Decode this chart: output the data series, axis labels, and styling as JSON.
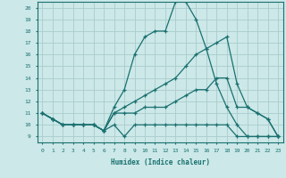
{
  "xlabel": "Humidex (Indice chaleur)",
  "bg_color": "#cce8e8",
  "line_color": "#1a7070",
  "grid_color": "#aacccc",
  "xlim": [
    -0.5,
    23.5
  ],
  "ylim": [
    8.5,
    20.5
  ],
  "xticks": [
    0,
    1,
    2,
    3,
    4,
    5,
    6,
    7,
    8,
    9,
    10,
    11,
    12,
    13,
    14,
    15,
    16,
    17,
    18,
    19,
    20,
    21,
    22,
    23
  ],
  "yticks": [
    9,
    10,
    11,
    12,
    13,
    14,
    15,
    16,
    17,
    18,
    19,
    20
  ],
  "series": [
    [
      11,
      10.5,
      10,
      10,
      10,
      10,
      9.5,
      10,
      9,
      10,
      10,
      10,
      10,
      10,
      10,
      10,
      10,
      10,
      10,
      9,
      9,
      9,
      9,
      9
    ],
    [
      11,
      10.5,
      10,
      10,
      10,
      10,
      9.5,
      11.5,
      13,
      16,
      17.5,
      18,
      18,
      20.5,
      20.5,
      19,
      16.5,
      13.5,
      11.5,
      10,
      9,
      9,
      9,
      9
    ],
    [
      11,
      10.5,
      10,
      10,
      10,
      10,
      9.5,
      11,
      11.5,
      12,
      12.5,
      13,
      13.5,
      14,
      15,
      16,
      16.5,
      17,
      17.5,
      13.5,
      11.5,
      11,
      10.5,
      9
    ],
    [
      11,
      10.5,
      10,
      10,
      10,
      10,
      9.5,
      11,
      11,
      11,
      11.5,
      11.5,
      11.5,
      12,
      12.5,
      13,
      13,
      14,
      14,
      11.5,
      11.5,
      11,
      10.5,
      9
    ]
  ]
}
